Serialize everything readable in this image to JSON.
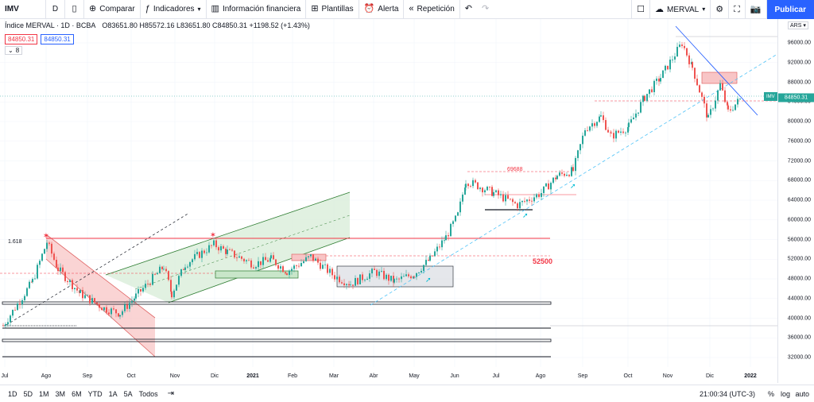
{
  "toolbar": {
    "symbol": "IMV",
    "interval": "D",
    "compare": "Comparar",
    "indicators": "Indicadores",
    "financial": "Información financiera",
    "templates": "Plantillas",
    "alert": "Alerta",
    "replay": "Repetición",
    "layout_name": "MERVAL",
    "publish": "Publicar"
  },
  "legend": {
    "title": "Índice MERVAL · 1D · BCBA",
    "ohlc": "O83651.80 H85572.16 L83651.80 C84850.31 +1198.52 (+1.43%)",
    "price_red": "84850.31",
    "price_blue": "84850.31",
    "indicator_count": "8"
  },
  "price_axis": {
    "currency": "ARS",
    "current_label": "IMV",
    "current_value": "84850.31",
    "ticks": [
      "96000.00",
      "92000.00",
      "88000.00",
      "84000.00",
      "80000.00",
      "76000.00",
      "72000.00",
      "68000.00",
      "64000.00",
      "60000.00",
      "56000.00",
      "52000.00",
      "48000.00",
      "44000.00",
      "40000.00",
      "36000.00",
      "32000.00"
    ]
  },
  "time_axis": {
    "ticks": [
      "Jul",
      "Ago",
      "Sep",
      "Oct",
      "Nov",
      "Dic",
      "2021",
      "Feb",
      "Mar",
      "Abr",
      "May",
      "Jun",
      "Jul",
      "Ago",
      "Sep",
      "Oct",
      "Nov",
      "Dic",
      "2022"
    ]
  },
  "annotations": {
    "fib": "1.618",
    "level_69688": "69688",
    "level_52500": "52500"
  },
  "bottom_bar": {
    "ranges": [
      "1D",
      "5D",
      "1M",
      "3M",
      "6M",
      "YTD",
      "1A",
      "5A",
      "Todos"
    ],
    "clock": "21:00:34 (UTC-3)",
    "percent": "%",
    "log": "log",
    "auto": "auto"
  },
  "colors": {
    "up": "#26a69a",
    "down": "#ef5350",
    "accent": "#2962ff"
  },
  "chart_data": {
    "type": "candlestick",
    "title": "Índice MERVAL · 1D · BCBA",
    "ylim": [
      32000,
      98000
    ],
    "x_ticks": [
      "Jul",
      "Ago",
      "Sep",
      "Oct",
      "Nov",
      "Dic",
      "2021",
      "Feb",
      "Mar",
      "Abr",
      "May",
      "Jun",
      "Jul",
      "Ago",
      "Sep",
      "Oct",
      "Nov",
      "Dic",
      "2022"
    ],
    "close_path": [
      {
        "x": "Jul",
        "y": 38500
      },
      {
        "x": "Ago",
        "y": 47500
      },
      {
        "x": "Ago",
        "y": 55500
      },
      {
        "x": "Ago",
        "y": 50000
      },
      {
        "x": "Sep",
        "y": 45000
      },
      {
        "x": "Sep",
        "y": 42000
      },
      {
        "x": "Oct",
        "y": 41000
      },
      {
        "x": "Oct",
        "y": 44500
      },
      {
        "x": "Nov",
        "y": 50500
      },
      {
        "x": "Nov",
        "y": 45000
      },
      {
        "x": "Nov",
        "y": 51000
      },
      {
        "x": "Dic",
        "y": 55000
      },
      {
        "x": "Dic",
        "y": 53500
      },
      {
        "x": "2021",
        "y": 51000
      },
      {
        "x": "2021",
        "y": 52000
      },
      {
        "x": "Feb",
        "y": 49500
      },
      {
        "x": "Feb",
        "y": 52500
      },
      {
        "x": "Mar",
        "y": 48500
      },
      {
        "x": "Mar",
        "y": 47000
      },
      {
        "x": "Abr",
        "y": 49500
      },
      {
        "x": "Abr",
        "y": 47500
      },
      {
        "x": "May",
        "y": 49000
      },
      {
        "x": "May",
        "y": 52000
      },
      {
        "x": "May",
        "y": 56500
      },
      {
        "x": "Jun",
        "y": 61000
      },
      {
        "x": "Jun",
        "y": 68000
      },
      {
        "x": "Jul",
        "y": 65500
      },
      {
        "x": "Jul",
        "y": 63000
      },
      {
        "x": "Ago",
        "y": 65500
      },
      {
        "x": "Ago",
        "y": 69000
      },
      {
        "x": "Sep",
        "y": 70000
      },
      {
        "x": "Sep",
        "y": 78500
      },
      {
        "x": "Sep",
        "y": 81000
      },
      {
        "x": "Sep",
        "y": 77000
      },
      {
        "x": "Oct",
        "y": 79000
      },
      {
        "x": "Oct",
        "y": 85000
      },
      {
        "x": "Nov",
        "y": 89000
      },
      {
        "x": "Nov",
        "y": 96000
      },
      {
        "x": "Nov",
        "y": 91000
      },
      {
        "x": "Dic",
        "y": 80500
      },
      {
        "x": "Dic",
        "y": 87500
      },
      {
        "x": "Dic",
        "y": 82000
      },
      {
        "x": "Dic",
        "y": 84850
      }
    ],
    "levels": [
      56000,
      52500,
      69688,
      44000,
      38000,
      35000,
      32000
    ]
  }
}
